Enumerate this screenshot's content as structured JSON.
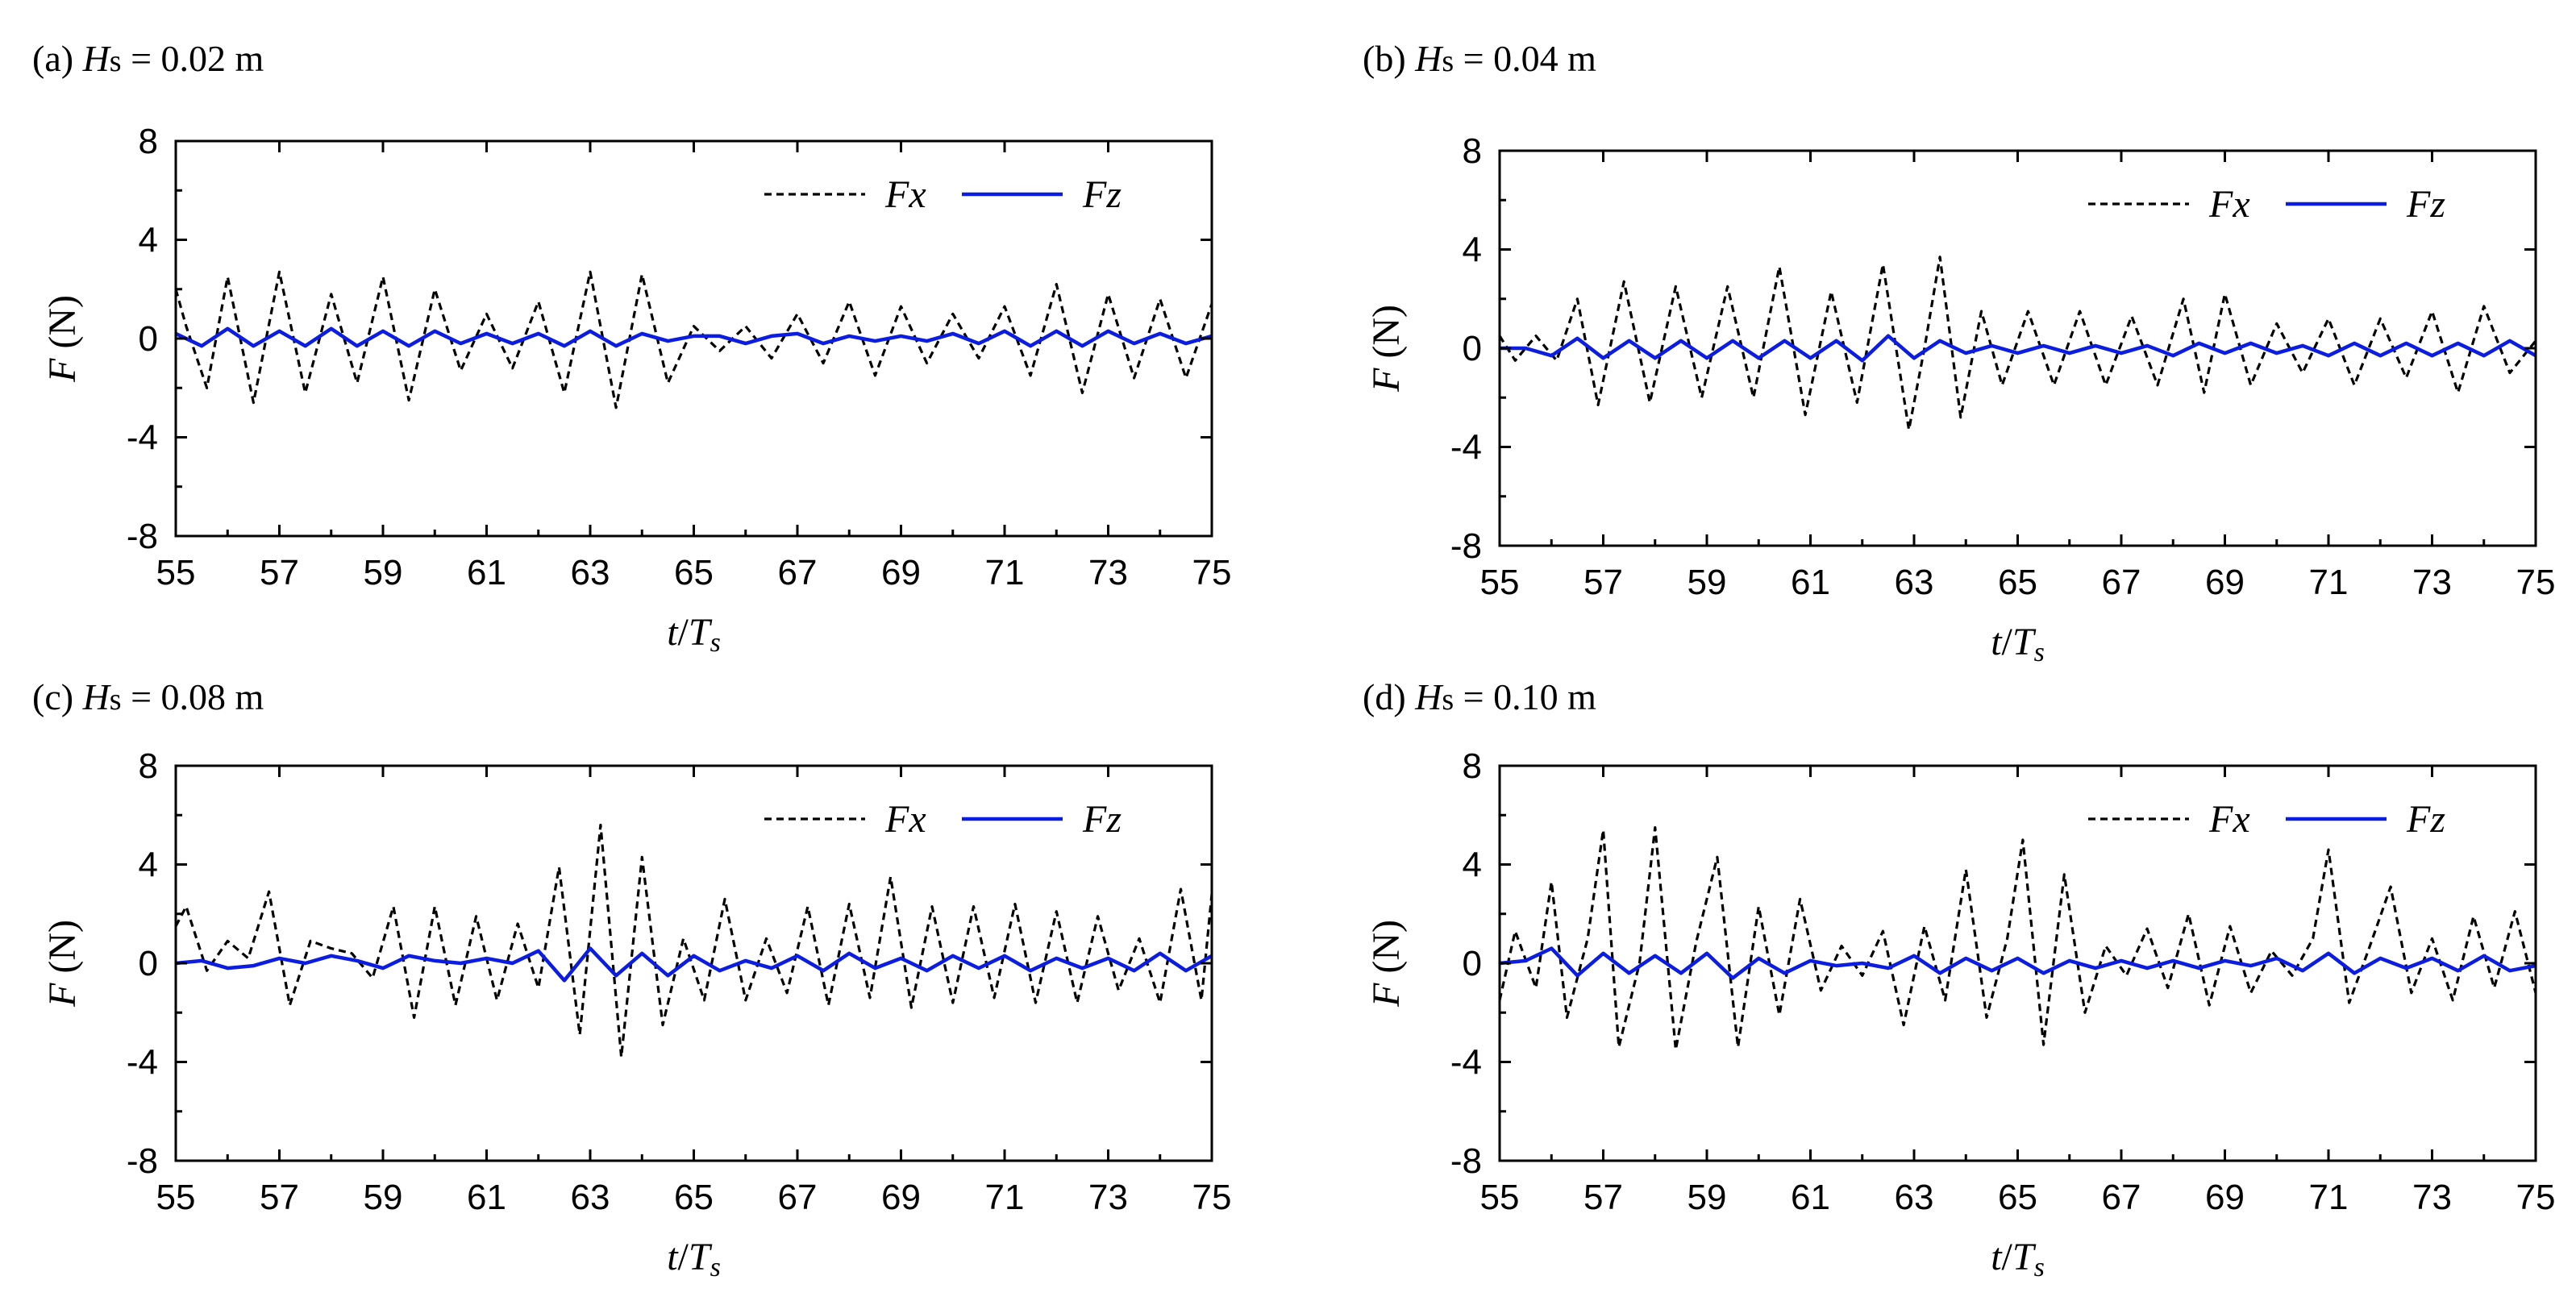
{
  "figure": {
    "x_axis": {
      "prefix": "t",
      "slash": "/",
      "var": "T",
      "sub": "s"
    },
    "y_axis": {
      "var": "F",
      "unit": "(N)"
    },
    "legend": {
      "fx": "Fx",
      "fz": "Fz"
    },
    "colors": {
      "fx": "#000000",
      "fz": "#0b1de0",
      "frame": "#000000",
      "background": "#ffffff"
    }
  },
  "chart_data": [
    {
      "id": "a",
      "type": "line",
      "label": {
        "prefix": "(a) ",
        "var": "H",
        "sub": "s",
        "rest": " = 0.02 m"
      },
      "xlim": [
        55,
        75
      ],
      "ylim": [
        -8,
        8
      ],
      "xticks": [
        55,
        57,
        59,
        61,
        63,
        65,
        67,
        69,
        71,
        73,
        75
      ],
      "yticks": [
        8,
        4,
        0,
        -4,
        -8
      ],
      "series": [
        {
          "name": "Fx",
          "style": "dashed",
          "x": [
            55.0,
            55.2,
            55.6,
            56.0,
            56.5,
            57.0,
            57.5,
            58.0,
            58.5,
            59.0,
            59.5,
            60.0,
            60.5,
            61.0,
            61.5,
            62.0,
            62.5,
            63.0,
            63.5,
            64.0,
            64.5,
            65.0,
            65.5,
            66.0,
            66.5,
            67.0,
            67.5,
            68.0,
            68.5,
            69.0,
            69.5,
            70.0,
            70.5,
            71.0,
            71.5,
            72.0,
            72.5,
            73.0,
            73.5,
            74.0,
            74.5,
            75.0
          ],
          "y": [
            2.0,
            0.5,
            -2.0,
            2.5,
            -2.6,
            2.7,
            -2.2,
            1.8,
            -1.8,
            2.5,
            -2.5,
            2.0,
            -1.3,
            1.0,
            -1.2,
            1.5,
            -2.2,
            2.7,
            -2.8,
            2.6,
            -1.8,
            0.5,
            -0.5,
            0.5,
            -0.8,
            1.0,
            -1.0,
            1.5,
            -1.5,
            1.3,
            -1.0,
            1.0,
            -0.8,
            1.3,
            -1.5,
            2.2,
            -2.2,
            1.8,
            -1.6,
            1.6,
            -1.6,
            1.4
          ]
        },
        {
          "name": "Fz",
          "style": "solid",
          "x": [
            55.0,
            55.5,
            56.0,
            56.5,
            57.0,
            57.5,
            58.0,
            58.5,
            59.0,
            59.5,
            60.0,
            60.5,
            61.0,
            61.5,
            62.0,
            62.5,
            63.0,
            63.5,
            64.0,
            64.5,
            65.0,
            65.5,
            66.0,
            66.5,
            67.0,
            67.5,
            68.0,
            68.5,
            69.0,
            69.5,
            70.0,
            70.5,
            71.0,
            71.5,
            72.0,
            72.5,
            73.0,
            73.5,
            74.0,
            74.5,
            75.0
          ],
          "y": [
            0.2,
            -0.3,
            0.4,
            -0.3,
            0.3,
            -0.3,
            0.4,
            -0.3,
            0.3,
            -0.3,
            0.3,
            -0.2,
            0.2,
            -0.2,
            0.2,
            -0.3,
            0.3,
            -0.3,
            0.2,
            -0.1,
            0.1,
            0.1,
            -0.2,
            0.1,
            0.2,
            -0.2,
            0.1,
            -0.1,
            0.1,
            -0.1,
            0.2,
            -0.2,
            0.3,
            -0.3,
            0.3,
            -0.3,
            0.3,
            -0.2,
            0.2,
            -0.2,
            0.1
          ]
        }
      ]
    },
    {
      "id": "b",
      "type": "line",
      "label": {
        "prefix": "(b) ",
        "var": "H",
        "sub": "s",
        "rest": " = 0.04 m"
      },
      "xlim": [
        55,
        75
      ],
      "ylim": [
        -8,
        8
      ],
      "xticks": [
        55,
        57,
        59,
        61,
        63,
        65,
        67,
        69,
        71,
        73,
        75
      ],
      "yticks": [
        8,
        4,
        0,
        -4,
        -8
      ],
      "series": [
        {
          "name": "Fx",
          "style": "dashed",
          "x": [
            55.0,
            55.3,
            55.7,
            56.1,
            56.5,
            56.9,
            57.4,
            57.9,
            58.4,
            58.9,
            59.4,
            59.9,
            60.4,
            60.9,
            61.4,
            61.9,
            62.4,
            62.9,
            63.2,
            63.5,
            63.9,
            64.3,
            64.7,
            65.2,
            65.7,
            66.2,
            66.7,
            67.2,
            67.7,
            68.2,
            68.6,
            69.0,
            69.5,
            70.0,
            70.5,
            71.0,
            71.5,
            72.0,
            72.5,
            73.0,
            73.5,
            74.0,
            74.5,
            75.0
          ],
          "y": [
            0.5,
            -0.5,
            0.5,
            -0.5,
            2.0,
            -2.3,
            2.7,
            -2.2,
            2.5,
            -2.0,
            2.5,
            -2.0,
            3.3,
            -2.7,
            2.3,
            -2.2,
            3.4,
            -3.3,
            0.0,
            3.7,
            -2.8,
            1.5,
            -1.5,
            1.5,
            -1.5,
            1.5,
            -1.5,
            1.3,
            -1.5,
            2.0,
            -1.8,
            2.2,
            -1.5,
            1.0,
            -1.0,
            1.2,
            -1.5,
            1.2,
            -1.2,
            1.5,
            -1.8,
            1.7,
            -1.0,
            0.3
          ]
        },
        {
          "name": "Fz",
          "style": "solid",
          "x": [
            55.0,
            55.5,
            56.0,
            56.5,
            57.0,
            57.5,
            58.0,
            58.5,
            59.0,
            59.5,
            60.0,
            60.5,
            61.0,
            61.5,
            62.0,
            62.5,
            63.0,
            63.5,
            64.0,
            64.5,
            65.0,
            65.5,
            66.0,
            66.5,
            67.0,
            67.5,
            68.0,
            68.5,
            69.0,
            69.5,
            70.0,
            70.5,
            71.0,
            71.5,
            72.0,
            72.5,
            73.0,
            73.5,
            74.0,
            74.5,
            75.0
          ],
          "y": [
            0.0,
            0.0,
            -0.3,
            0.4,
            -0.4,
            0.3,
            -0.4,
            0.3,
            -0.4,
            0.3,
            -0.4,
            0.3,
            -0.4,
            0.3,
            -0.5,
            0.5,
            -0.4,
            0.3,
            -0.2,
            0.1,
            -0.2,
            0.1,
            -0.2,
            0.1,
            -0.2,
            0.1,
            -0.3,
            0.2,
            -0.2,
            0.2,
            -0.2,
            0.1,
            -0.3,
            0.2,
            -0.3,
            0.2,
            -0.3,
            0.2,
            -0.3,
            0.3,
            -0.3
          ]
        }
      ]
    },
    {
      "id": "c",
      "type": "line",
      "label": {
        "prefix": "(c) ",
        "var": "H",
        "sub": "s",
        "rest": " = 0.08 m"
      },
      "xlim": [
        55,
        75
      ],
      "ylim": [
        -8,
        8
      ],
      "xticks": [
        55,
        57,
        59,
        61,
        63,
        65,
        67,
        69,
        71,
        73,
        75
      ],
      "yticks": [
        8,
        4,
        0,
        -4,
        -8
      ],
      "series": [
        {
          "name": "Fx",
          "style": "dashed",
          "x": [
            55.0,
            55.2,
            55.6,
            56.0,
            56.4,
            56.8,
            57.2,
            57.6,
            58.0,
            58.4,
            58.8,
            59.2,
            59.6,
            60.0,
            60.4,
            60.8,
            61.2,
            61.6,
            62.0,
            62.4,
            62.8,
            63.2,
            63.6,
            64.0,
            64.4,
            64.8,
            65.2,
            65.6,
            66.0,
            66.4,
            66.8,
            67.2,
            67.6,
            68.0,
            68.4,
            68.8,
            69.2,
            69.6,
            70.0,
            70.4,
            70.8,
            71.2,
            71.6,
            72.0,
            72.4,
            72.8,
            73.2,
            73.6,
            74.0,
            74.4,
            74.8,
            75.0
          ],
          "y": [
            1.5,
            2.3,
            -0.3,
            0.9,
            0.2,
            2.9,
            -1.7,
            0.9,
            0.6,
            0.4,
            -0.6,
            2.3,
            -2.2,
            2.3,
            -1.7,
            1.9,
            -1.5,
            1.6,
            -1.0,
            3.9,
            -2.9,
            5.6,
            -3.8,
            4.3,
            -2.5,
            1.0,
            -1.5,
            2.6,
            -1.5,
            1.0,
            -1.2,
            2.3,
            -1.7,
            2.4,
            -1.4,
            3.5,
            -1.8,
            2.3,
            -1.6,
            2.3,
            -1.4,
            2.4,
            -1.6,
            2.1,
            -1.6,
            1.9,
            -1.1,
            1.0,
            -1.6,
            3.0,
            -1.5,
            2.8
          ]
        },
        {
          "name": "Fz",
          "style": "solid",
          "x": [
            55.0,
            55.5,
            56.0,
            56.5,
            57.0,
            57.5,
            58.0,
            58.5,
            59.0,
            59.5,
            60.0,
            60.5,
            61.0,
            61.5,
            62.0,
            62.5,
            63.0,
            63.5,
            64.0,
            64.5,
            65.0,
            65.5,
            66.0,
            66.5,
            67.0,
            67.5,
            68.0,
            68.5,
            69.0,
            69.5,
            70.0,
            70.5,
            71.0,
            71.5,
            72.0,
            72.5,
            73.0,
            73.5,
            74.0,
            74.5,
            75.0
          ],
          "y": [
            0.0,
            0.1,
            -0.2,
            -0.1,
            0.2,
            0.0,
            0.3,
            0.1,
            -0.2,
            0.3,
            0.1,
            0.0,
            0.2,
            0.0,
            0.5,
            -0.7,
            0.6,
            -0.5,
            0.4,
            -0.5,
            0.3,
            -0.3,
            0.1,
            -0.2,
            0.3,
            -0.3,
            0.4,
            -0.2,
            0.2,
            -0.3,
            0.3,
            -0.2,
            0.3,
            -0.3,
            0.2,
            -0.2,
            0.2,
            -0.3,
            0.4,
            -0.3,
            0.3
          ]
        }
      ]
    },
    {
      "id": "d",
      "type": "line",
      "label": {
        "prefix": "(d) ",
        "var": "H",
        "sub": "s",
        "rest": " = 0.10 m"
      },
      "xlim": [
        55,
        75
      ],
      "ylim": [
        -8,
        8
      ],
      "xticks": [
        55,
        57,
        59,
        61,
        63,
        65,
        67,
        69,
        71,
        73,
        75
      ],
      "yticks": [
        8,
        4,
        0,
        -4,
        -8
      ],
      "series": [
        {
          "name": "Fx",
          "style": "dashed",
          "x": [
            55.0,
            55.3,
            55.7,
            56.0,
            56.3,
            56.7,
            57.0,
            57.3,
            57.7,
            58.0,
            58.4,
            58.8,
            59.2,
            59.6,
            60.0,
            60.4,
            60.8,
            61.2,
            61.6,
            62.0,
            62.4,
            62.8,
            63.2,
            63.6,
            64.0,
            64.4,
            64.8,
            65.1,
            65.5,
            65.9,
            66.3,
            66.7,
            67.1,
            67.5,
            67.9,
            68.3,
            68.7,
            69.1,
            69.5,
            69.9,
            70.3,
            70.7,
            71.0,
            71.4,
            71.8,
            72.2,
            72.6,
            73.0,
            73.4,
            73.8,
            74.2,
            74.6,
            75.0
          ],
          "y": [
            -1.5,
            1.3,
            -1.0,
            3.3,
            -2.2,
            1.0,
            5.4,
            -3.4,
            0.0,
            5.5,
            -3.5,
            0.9,
            4.3,
            -3.4,
            2.3,
            -2.1,
            2.6,
            -1.1,
            0.7,
            -0.5,
            1.3,
            -2.5,
            1.5,
            -1.5,
            3.8,
            -2.2,
            1.0,
            5.0,
            -3.3,
            3.6,
            -2.0,
            0.7,
            -0.5,
            1.4,
            -1.0,
            2.0,
            -1.7,
            1.5,
            -1.2,
            0.5,
            -0.5,
            1.0,
            4.6,
            -1.6,
            0.7,
            3.1,
            -1.2,
            1.0,
            -1.5,
            1.9,
            -1.0,
            2.1,
            -1.2
          ]
        },
        {
          "name": "Fz",
          "style": "solid",
          "x": [
            55.0,
            55.5,
            56.0,
            56.5,
            57.0,
            57.5,
            58.0,
            58.5,
            59.0,
            59.5,
            60.0,
            60.5,
            61.0,
            61.5,
            62.0,
            62.5,
            63.0,
            63.5,
            64.0,
            64.5,
            65.0,
            65.5,
            66.0,
            66.5,
            67.0,
            67.5,
            68.0,
            68.5,
            69.0,
            69.5,
            70.0,
            70.5,
            71.0,
            71.5,
            72.0,
            72.5,
            73.0,
            73.5,
            74.0,
            74.5,
            75.0
          ],
          "y": [
            0.0,
            0.1,
            0.6,
            -0.5,
            0.4,
            -0.4,
            0.3,
            -0.4,
            0.4,
            -0.6,
            0.2,
            -0.4,
            0.1,
            -0.1,
            0.0,
            -0.2,
            0.3,
            -0.4,
            0.2,
            -0.3,
            0.2,
            -0.4,
            0.1,
            -0.2,
            0.1,
            -0.2,
            0.1,
            -0.2,
            0.1,
            -0.1,
            0.2,
            -0.3,
            0.4,
            -0.4,
            0.2,
            -0.2,
            0.2,
            -0.3,
            0.3,
            -0.3,
            -0.1
          ]
        }
      ]
    }
  ]
}
